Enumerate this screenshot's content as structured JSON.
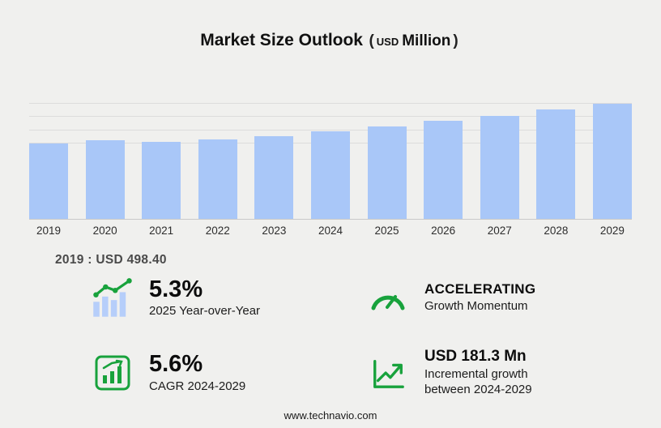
{
  "title": {
    "main": "Market Size Outlook",
    "open": "(",
    "unit_small": "USD",
    "unit_big": "Million",
    "close": ")"
  },
  "chart_data": {
    "type": "bar",
    "title": "Market Size Outlook (USD Million)",
    "categories": [
      "2019",
      "2020",
      "2021",
      "2022",
      "2023",
      "2024",
      "2025",
      "2026",
      "2027",
      "2028",
      "2029"
    ],
    "values": [
      498.4,
      519,
      505,
      524,
      546,
      579,
      610,
      645,
      681,
      720,
      760
    ],
    "xlabel": "",
    "ylabel": "USD Million",
    "ylim": [
      0,
      780
    ],
    "grid": true,
    "legend": false,
    "bar_color": "#a9c7f8",
    "annotations": [
      "2019 : USD 498.40"
    ]
  },
  "annotation_2019": "2019 : USD  498.40",
  "stats": [
    {
      "icon": "bar-chart-growth-icon",
      "value": "5.3%",
      "label": "2025 Year-over-Year"
    },
    {
      "icon": "speedometer-icon",
      "value": "ACCELERATING",
      "label": "Growth Momentum"
    },
    {
      "icon": "chart-frame-growth-icon",
      "value": "5.6%",
      "label": "CAGR 2024-2029"
    },
    {
      "icon": "trend-up-axis-icon",
      "value": "USD 181.3 Mn",
      "label": "Incremental growth between 2024-2029"
    }
  ],
  "colors": {
    "bar": "#a9c7f8",
    "accent_green": "#18a23c",
    "background": "#f0f0ee"
  },
  "footer": "www.technavio.com"
}
